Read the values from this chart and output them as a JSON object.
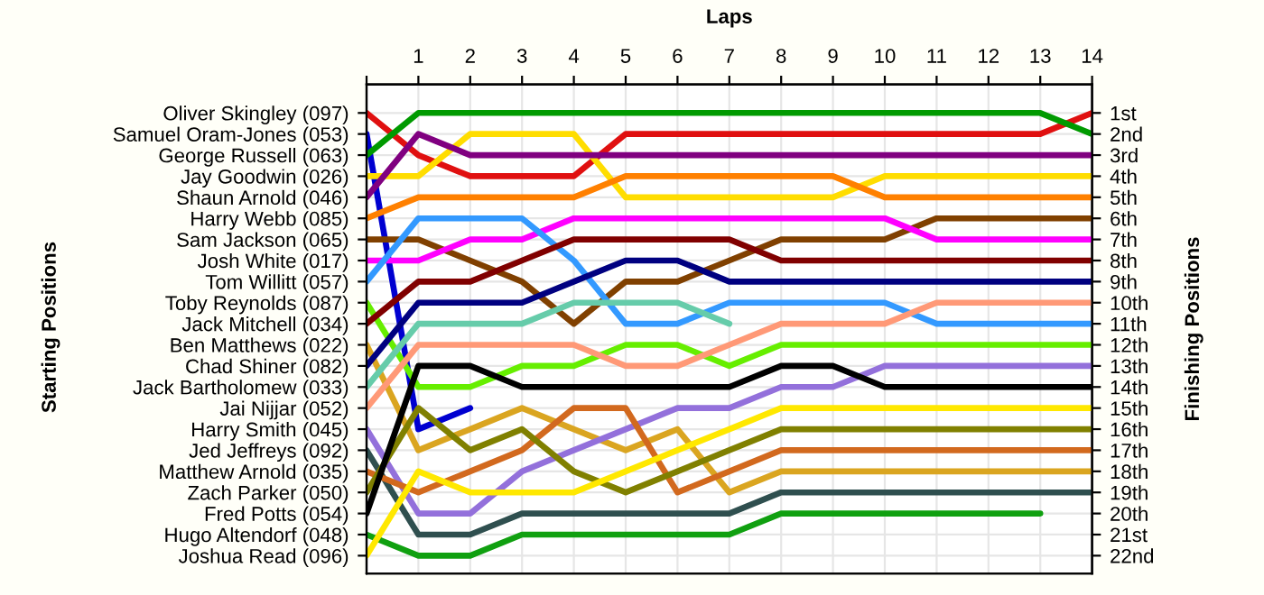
{
  "chart_data": {
    "type": "line",
    "xlabel": "Laps",
    "annotations": [
      "Starting Positions"
    ],
    "y2label": "Finishing Positions",
    "x": [
      0,
      1,
      2,
      3,
      4,
      5,
      6,
      7,
      8,
      9,
      10,
      11,
      12,
      13,
      14
    ],
    "xlim": [
      0,
      14
    ],
    "xticks": [
      {
        "value": 0,
        "label": null
      },
      1,
      2,
      3,
      4,
      5,
      6,
      7,
      8,
      9,
      10,
      11,
      12,
      13,
      14
    ],
    "y_categories": [
      "Oliver Skingley (097)",
      "Samuel Oram-Jones (053)",
      "George Russell (063)",
      "Jay Goodwin (026)",
      "Shaun Arnold (046)",
      "Harry Webb (085)",
      "Sam Jackson (065)",
      "Josh White (017)",
      "Tom Willitt (057)",
      "Toby Reynolds (087)",
      "Jack Mitchell (034)",
      "Ben Matthews (022)",
      "Chad Shiner (082)",
      "Jack Bartholomew (033)",
      "Jai Nijjar (052)",
      "Harry Smith (045)",
      "Jed Jeffreys (092)",
      "Matthew Arnold (035)",
      "Zach Parker (050)",
      "Fred Potts (054)",
      "Hugo Altendorf (048)",
      "Joshua Read (096)"
    ],
    "y2lim": [
      22.85,
      -0.35
    ],
    "y2ticks": [
      {
        "value": 1,
        "label": "1st"
      },
      {
        "value": 2,
        "label": "2nd"
      },
      {
        "value": 3,
        "label": "3rd"
      },
      {
        "value": 4,
        "label": "4th"
      },
      {
        "value": 5,
        "label": "5th"
      },
      {
        "value": 6,
        "label": "6th"
      },
      {
        "value": 7,
        "label": "7th"
      },
      {
        "value": 8,
        "label": "8th"
      },
      {
        "value": 9,
        "label": "9th"
      },
      {
        "value": 10,
        "label": "10th"
      },
      {
        "value": 11,
        "label": "11th"
      },
      {
        "value": 12,
        "label": "12th"
      },
      {
        "value": 13,
        "label": "13th"
      },
      {
        "value": 14,
        "label": "14th"
      },
      {
        "value": 15,
        "label": "15th"
      },
      {
        "value": 16,
        "label": "16th"
      },
      {
        "value": 17,
        "label": "17th"
      },
      {
        "value": 18,
        "label": "18th"
      },
      {
        "value": 19,
        "label": "19th"
      },
      {
        "value": 20,
        "label": "20th"
      },
      {
        "value": 21,
        "label": "21st"
      },
      {
        "value": 22,
        "label": "22nd"
      }
    ],
    "grid": true,
    "marker": "none",
    "line_style": "solid",
    "series": [
      {
        "axis": "y2",
        "color": "#e01010",
        "values": [
          1,
          3,
          4,
          4,
          4,
          2,
          2,
          2,
          2,
          2,
          2,
          2,
          2,
          2,
          1
        ]
      },
      {
        "axis": "y2",
        "color": "#0000d0",
        "values": [
          2,
          16,
          15,
          null,
          null,
          null,
          null,
          null,
          null,
          null,
          null,
          null,
          null,
          null,
          null
        ]
      },
      {
        "axis": "y2",
        "color": "#009a00",
        "values": [
          3,
          1,
          1,
          1,
          1,
          1,
          1,
          1,
          1,
          1,
          1,
          1,
          1,
          1,
          2
        ]
      },
      {
        "axis": "y2",
        "color": "#ffdd00",
        "values": [
          4,
          4,
          2,
          2,
          2,
          5,
          5,
          5,
          5,
          5,
          4,
          4,
          4,
          4,
          4
        ]
      },
      {
        "axis": "y2",
        "color": "#800080",
        "values": [
          5,
          2,
          3,
          3,
          3,
          3,
          3,
          3,
          3,
          3,
          3,
          3,
          3,
          3,
          3
        ]
      },
      {
        "axis": "y2",
        "color": "#ff8000",
        "values": [
          6,
          5,
          5,
          5,
          5,
          4,
          4,
          4,
          4,
          4,
          5,
          5,
          5,
          5,
          5
        ]
      },
      {
        "axis": "y2",
        "color": "#804000",
        "values": [
          7,
          7,
          8,
          9,
          11,
          9,
          9,
          8,
          7,
          7,
          7,
          6,
          6,
          6,
          6
        ]
      },
      {
        "axis": "y2",
        "color": "#ff00ff",
        "values": [
          8,
          8,
          7,
          7,
          6,
          6,
          6,
          6,
          6,
          6,
          6,
          7,
          7,
          7,
          7
        ]
      },
      {
        "axis": "y2",
        "color": "#3399ff",
        "values": [
          9,
          6,
          6,
          6,
          8,
          11,
          11,
          10,
          10,
          10,
          10,
          11,
          11,
          11,
          11
        ]
      },
      {
        "axis": "y2",
        "color": "#66ee00",
        "values": [
          10,
          14,
          14,
          13,
          13,
          12,
          12,
          13,
          12,
          12,
          12,
          12,
          12,
          12,
          12
        ]
      },
      {
        "axis": "y2",
        "color": "#800000",
        "values": [
          11,
          9,
          9,
          8,
          7,
          7,
          7,
          7,
          8,
          8,
          8,
          8,
          8,
          8,
          8
        ]
      },
      {
        "axis": "y2",
        "color": "#daa520",
        "values": [
          12,
          17,
          16,
          15,
          16,
          17,
          16,
          19,
          18,
          18,
          18,
          18,
          18,
          18,
          18
        ]
      },
      {
        "axis": "y2",
        "color": "#000080",
        "values": [
          13,
          10,
          10,
          10,
          9,
          8,
          8,
          9,
          9,
          9,
          9,
          9,
          9,
          9,
          9
        ]
      },
      {
        "axis": "y2",
        "color": "#66ccaa",
        "values": [
          14,
          11,
          11,
          11,
          10,
          10,
          10,
          11,
          null,
          null,
          null,
          null,
          null,
          null,
          null
        ]
      },
      {
        "axis": "y2",
        "color": "#ff9977",
        "values": [
          15,
          12,
          12,
          12,
          12,
          13,
          13,
          12,
          11,
          11,
          11,
          10,
          10,
          10,
          10
        ]
      },
      {
        "axis": "y2",
        "color": "#9370db",
        "values": [
          16,
          20,
          20,
          18,
          17,
          16,
          15,
          15,
          14,
          14,
          13,
          13,
          13,
          13,
          13
        ]
      },
      {
        "axis": "y2",
        "color": "#2f4f4f",
        "values": [
          17,
          21,
          21,
          20,
          20,
          20,
          20,
          20,
          19,
          19,
          19,
          19,
          19,
          19,
          19
        ]
      },
      {
        "axis": "y2",
        "color": "#d2691e",
        "values": [
          18,
          19,
          18,
          17,
          15,
          15,
          19,
          18,
          17,
          17,
          17,
          17,
          17,
          17,
          17
        ]
      },
      {
        "axis": "y2",
        "color": "#808000",
        "values": [
          19,
          15,
          17,
          16,
          18,
          19,
          18,
          17,
          16,
          16,
          16,
          16,
          16,
          16,
          16
        ]
      },
      {
        "axis": "y2",
        "color": "#000000",
        "values": [
          20,
          13,
          13,
          14,
          14,
          14,
          14,
          14,
          13,
          13,
          14,
          14,
          14,
          14,
          14
        ]
      },
      {
        "axis": "y2",
        "color": "#10a010",
        "values": [
          21,
          22,
          22,
          21,
          21,
          21,
          21,
          21,
          20,
          20,
          20,
          20,
          20,
          20,
          null
        ]
      },
      {
        "axis": "y2",
        "color": "#ffe800",
        "values": [
          22,
          18,
          19,
          19,
          19,
          18,
          17,
          16,
          15,
          15,
          15,
          15,
          15,
          15,
          15
        ]
      }
    ]
  }
}
